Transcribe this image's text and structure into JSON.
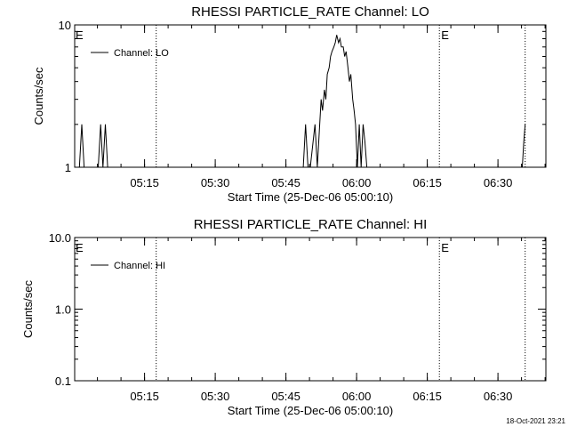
{
  "timestamp": "18-Oct-2021 23:21",
  "chart_data": [
    {
      "type": "line",
      "title": "RHESSI PARTICLE_RATE Channel: LO",
      "xlabel": "Start Time (25-Dec-06 05:00:10)",
      "ylabel": "Counts/sec",
      "yscale": "log",
      "ylim": [
        1,
        10
      ],
      "ytick_labels": [
        "1",
        "10"
      ],
      "x_unit": "minutes after 05:00:10",
      "xlim": [
        0,
        100
      ],
      "xticks": [
        {
          "value": 14.83,
          "label": "05:15"
        },
        {
          "value": 29.83,
          "label": "05:30"
        },
        {
          "value": 44.83,
          "label": "05:45"
        },
        {
          "value": 59.83,
          "label": "06:00"
        },
        {
          "value": 74.83,
          "label": "06:15"
        },
        {
          "value": 89.83,
          "label": "06:30"
        }
      ],
      "legend": {
        "label": "Channel: LO",
        "position": "top-left"
      },
      "eclipse_marker_label": "E",
      "eclipse_lines": [
        0,
        17.3,
        77.4,
        95.6
      ],
      "eclipse_labels_at": [
        0,
        77.4
      ],
      "series": [
        {
          "name": "Channel: LO",
          "points": [
            [
              0.5,
              1
            ],
            [
              1,
              1
            ],
            [
              1.5,
              2
            ],
            [
              2,
              1
            ],
            [
              5,
              1
            ],
            [
              5.5,
              2
            ],
            [
              6,
              1
            ],
            [
              6.5,
              2
            ],
            [
              7,
              1
            ],
            [
              48.5,
              1
            ],
            [
              49,
              2
            ],
            [
              49.5,
              1
            ],
            [
              50,
              1
            ],
            [
              51,
              2
            ],
            [
              51.5,
              1
            ],
            [
              52,
              2
            ],
            [
              52.3,
              3
            ],
            [
              52.6,
              2.5
            ],
            [
              53,
              3.5
            ],
            [
              53.3,
              3
            ],
            [
              53.6,
              4.5
            ],
            [
              54,
              5
            ],
            [
              54.3,
              6
            ],
            [
              54.6,
              6.5
            ],
            [
              55,
              7
            ],
            [
              55.3,
              7.5
            ],
            [
              55.6,
              8.5
            ],
            [
              56,
              7.5
            ],
            [
              56.3,
              8
            ],
            [
              56.6,
              7
            ],
            [
              57,
              7
            ],
            [
              57.3,
              6
            ],
            [
              57.6,
              6.5
            ],
            [
              58,
              5
            ],
            [
              58.3,
              4
            ],
            [
              58.6,
              4.5
            ],
            [
              59,
              3
            ],
            [
              59.3,
              2.5
            ],
            [
              59.6,
              2
            ],
            [
              60,
              1
            ],
            [
              60.4,
              2
            ],
            [
              60.8,
              1
            ],
            [
              61.2,
              2
            ],
            [
              61.6,
              1.5
            ],
            [
              62,
              1
            ],
            [
              62.4,
              1
            ],
            [
              95,
              1
            ],
            [
              95.3,
              1.5
            ],
            [
              95.6,
              2
            ]
          ]
        }
      ]
    },
    {
      "type": "line",
      "title": "RHESSI PARTICLE_RATE Channel: HI",
      "xlabel": "Start Time (25-Dec-06 05:00:10)",
      "ylabel": "Counts/sec",
      "yscale": "log",
      "ylim": [
        0.1,
        10
      ],
      "ytick_labels": [
        "0.1",
        "1.0",
        "10.0"
      ],
      "x_unit": "minutes after 05:00:10",
      "xlim": [
        0,
        100
      ],
      "xticks": [
        {
          "value": 14.83,
          "label": "05:15"
        },
        {
          "value": 29.83,
          "label": "05:30"
        },
        {
          "value": 44.83,
          "label": "05:45"
        },
        {
          "value": 59.83,
          "label": "06:00"
        },
        {
          "value": 74.83,
          "label": "06:15"
        },
        {
          "value": 89.83,
          "label": "06:30"
        }
      ],
      "legend": {
        "label": "Channel: HI",
        "position": "top-left"
      },
      "eclipse_marker_label": "E",
      "eclipse_lines": [
        0,
        17.3,
        77.4,
        95.6
      ],
      "eclipse_labels_at": [
        0,
        77.4
      ],
      "series": [
        {
          "name": "Channel: HI",
          "points": []
        }
      ]
    }
  ]
}
